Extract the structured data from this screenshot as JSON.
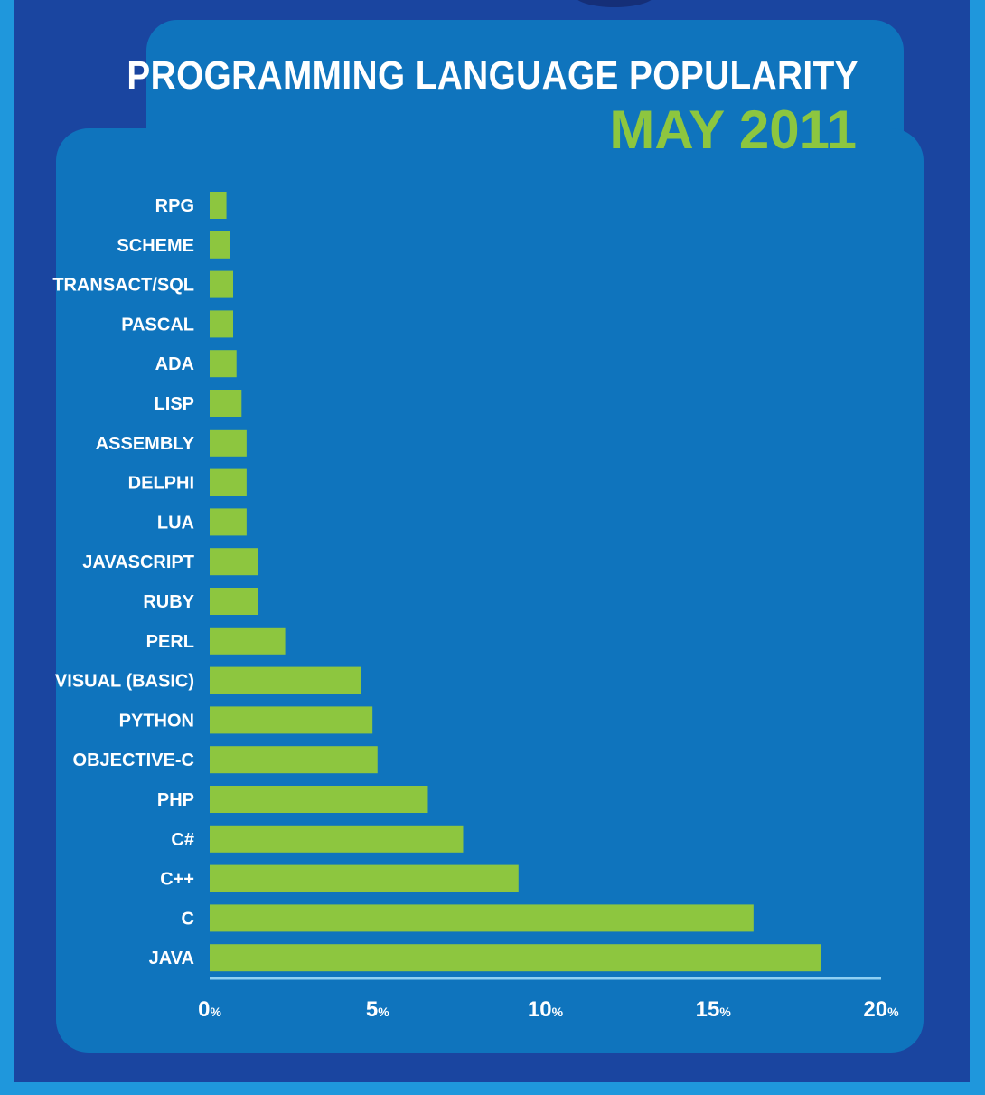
{
  "chart_data": {
    "type": "bar",
    "orientation": "horizontal",
    "title": "PROGRAMMING LANGUAGE POPULARITY",
    "subtitle": "MAY 2011",
    "categories": [
      "RPG",
      "SCHEME",
      "TRANSACT/SQL",
      "PASCAL",
      "ADA",
      "LISP",
      "ASSEMBLY",
      "DELPHI",
      "LUA",
      "JAVASCRIPT",
      "RUBY",
      "PERL",
      "VISUAL (BASIC)",
      "PYTHON",
      "OBJECTIVE-C",
      "PHP",
      "C#",
      "C++",
      "C",
      "JAVA"
    ],
    "values": [
      0.5,
      0.6,
      0.7,
      0.7,
      0.8,
      0.95,
      1.1,
      1.1,
      1.1,
      1.45,
      1.45,
      2.25,
      4.5,
      4.85,
      5.0,
      6.5,
      7.55,
      9.2,
      16.2,
      18.2
    ],
    "xlim": [
      0,
      20
    ],
    "ticks": [
      0,
      5,
      10,
      15,
      20
    ],
    "tick_unit": "%",
    "xlabel": "",
    "ylabel": "",
    "grid": false,
    "colors": {
      "bar": "#8dc63f",
      "axis": "#8fd0f3",
      "text": "#ffffff",
      "subtitle": "#8dc63f"
    }
  }
}
